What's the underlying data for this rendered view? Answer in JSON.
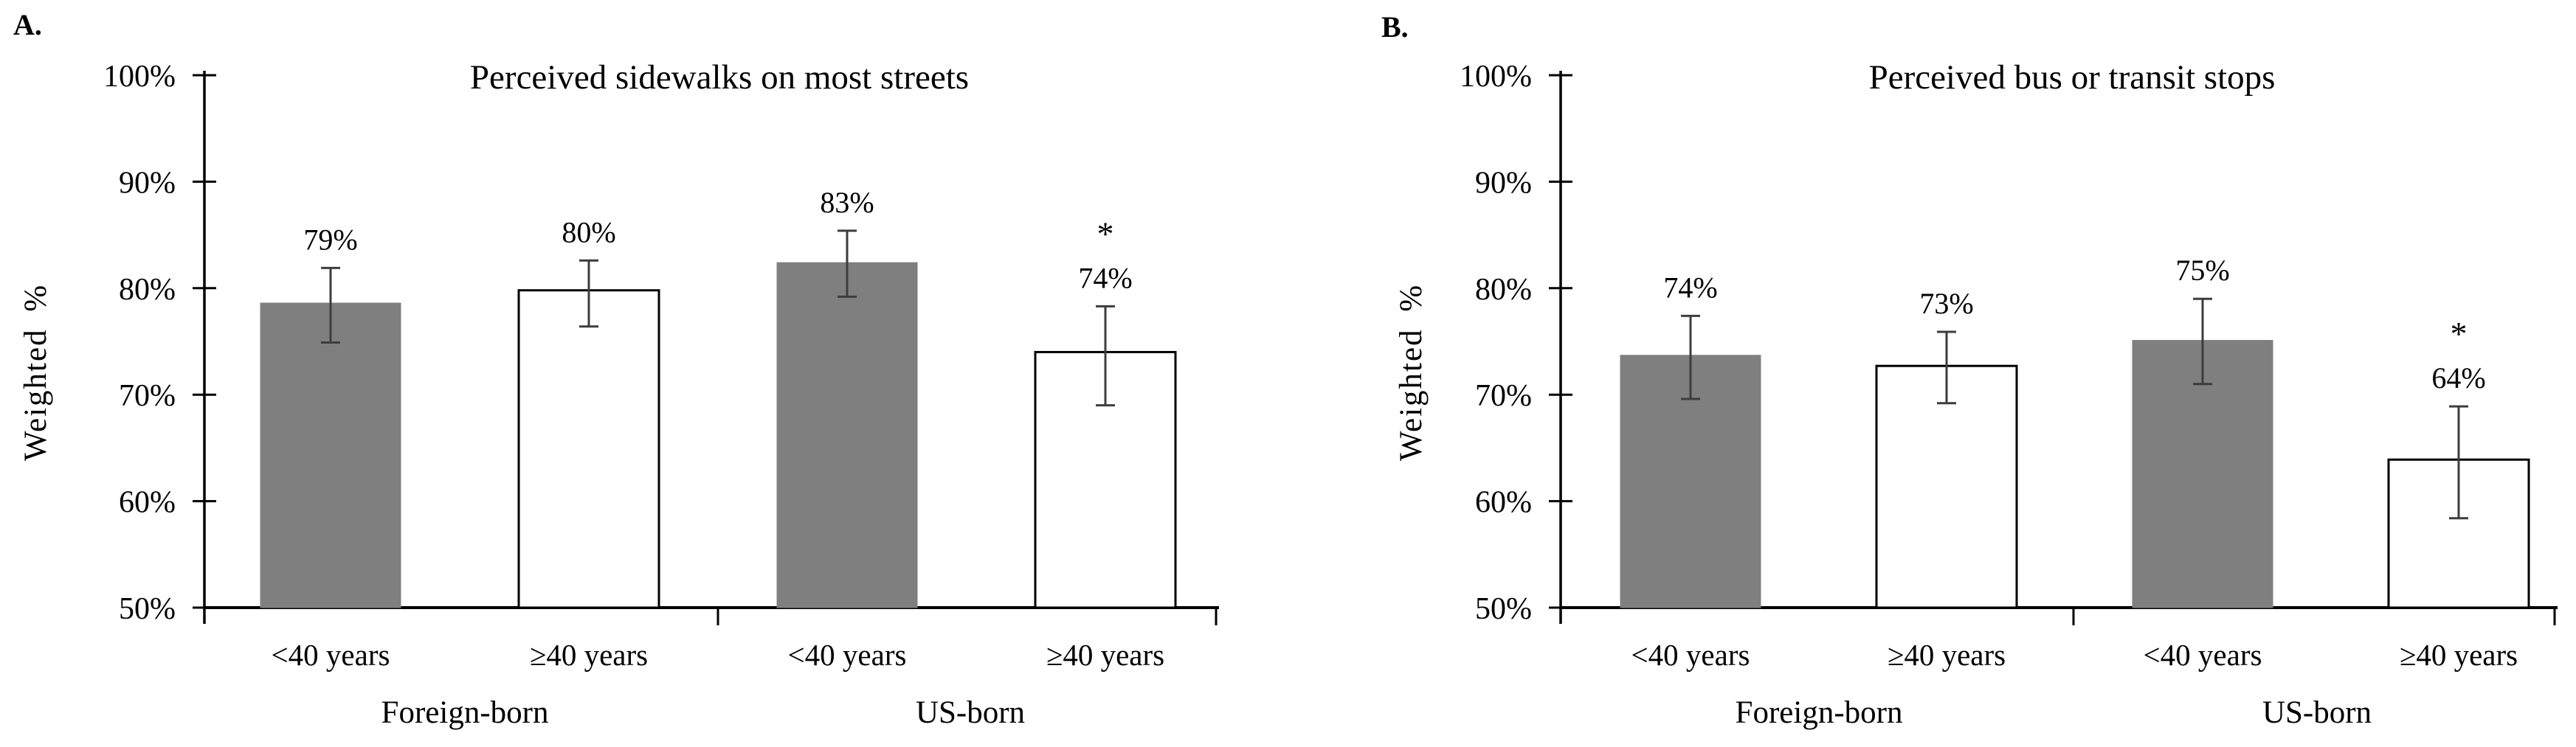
{
  "figure": {
    "background": "#ffffff",
    "colors": {
      "bar_gray": "#7f7f7f",
      "bar_white": "#ffffff",
      "bar_border": "#000000",
      "error_bar": "#3d3d3d",
      "axis": "#000000",
      "text": "#000000"
    }
  },
  "chart_data": [
    {
      "type": "bar",
      "panel": "A.",
      "title": "Perceived sidewalks on most streets",
      "xlabel": "",
      "ylabel": "Weighted %",
      "ylim": [
        50,
        100
      ],
      "ytick_values": [
        50,
        60,
        70,
        80,
        90,
        100
      ],
      "ytick_labels": [
        "50%",
        "60%",
        "70%",
        "80%",
        "90%",
        "100%"
      ],
      "grid": false,
      "legend": null,
      "group_labels": [
        "Foreign-born",
        "US-born"
      ],
      "categories": [
        "<40 years",
        "≥40 years",
        "<40 years",
        "≥40 years"
      ],
      "bars": [
        {
          "group": "Foreign-born",
          "category": "<40 years",
          "value_label": "79%",
          "value_pct": 79,
          "bar_top_pct": 78.6,
          "err_low_pct": 74.9,
          "err_high_pct": 81.9,
          "fill": "gray",
          "significant": false,
          "sig_marker": ""
        },
        {
          "group": "Foreign-born",
          "category": "≥40 years",
          "value_label": "80%",
          "value_pct": 80,
          "bar_top_pct": 79.8,
          "err_low_pct": 76.4,
          "err_high_pct": 82.6,
          "fill": "white",
          "significant": false,
          "sig_marker": ""
        },
        {
          "group": "US-born",
          "category": "<40 years",
          "value_label": "83%",
          "value_pct": 83,
          "bar_top_pct": 82.4,
          "err_low_pct": 79.2,
          "err_high_pct": 85.4,
          "fill": "gray",
          "significant": false,
          "sig_marker": ""
        },
        {
          "group": "US-born",
          "category": "≥40 years",
          "value_label": "74%",
          "value_pct": 74,
          "bar_top_pct": 74.0,
          "err_low_pct": 69.0,
          "err_high_pct": 78.3,
          "fill": "white",
          "significant": true,
          "sig_marker": "*"
        }
      ]
    },
    {
      "type": "bar",
      "panel": "B.",
      "title": "Perceived bus or transit stops",
      "xlabel": "",
      "ylabel": "Weighted %",
      "ylim": [
        50,
        100
      ],
      "ytick_values": [
        50,
        60,
        70,
        80,
        90,
        100
      ],
      "ytick_labels": [
        "50%",
        "60%",
        "70%",
        "80%",
        "90%",
        "100%"
      ],
      "grid": false,
      "legend": null,
      "group_labels": [
        "Foreign-born",
        "US-born"
      ],
      "categories": [
        "<40 years",
        "≥40 years",
        "<40 years",
        "≥40 years"
      ],
      "bars": [
        {
          "group": "Foreign-born",
          "category": "<40 years",
          "value_label": "74%",
          "value_pct": 74,
          "bar_top_pct": 73.7,
          "err_low_pct": 69.6,
          "err_high_pct": 77.4,
          "fill": "gray",
          "significant": false,
          "sig_marker": ""
        },
        {
          "group": "Foreign-born",
          "category": "≥40 years",
          "value_label": "73%",
          "value_pct": 73,
          "bar_top_pct": 72.7,
          "err_low_pct": 69.2,
          "err_high_pct": 75.9,
          "fill": "white",
          "significant": false,
          "sig_marker": ""
        },
        {
          "group": "US-born",
          "category": "<40 years",
          "value_label": "75%",
          "value_pct": 75,
          "bar_top_pct": 75.1,
          "err_low_pct": 71.0,
          "err_high_pct": 79.0,
          "fill": "gray",
          "significant": false,
          "sig_marker": ""
        },
        {
          "group": "US-born",
          "category": "≥40 years",
          "value_label": "64%",
          "value_pct": 64,
          "bar_top_pct": 63.9,
          "err_low_pct": 58.4,
          "err_high_pct": 68.9,
          "fill": "white",
          "significant": true,
          "sig_marker": "*"
        }
      ]
    }
  ]
}
